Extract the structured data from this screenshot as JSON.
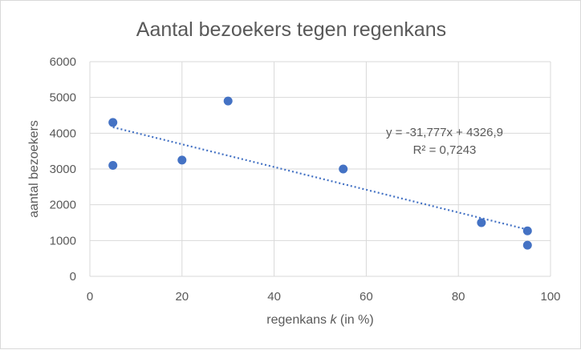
{
  "chart_data": {
    "type": "scatter",
    "title": "Aantal bezoekers tegen regenkans",
    "xlabel": {
      "before": "regenkans ",
      "italic": "k",
      "after": " (in %)"
    },
    "ylabel": "aantal bezoekers",
    "xlim": [
      0,
      100
    ],
    "ylim": [
      0,
      6000
    ],
    "x_ticks": [
      0,
      20,
      40,
      60,
      80,
      100
    ],
    "y_ticks": [
      0,
      1000,
      2000,
      3000,
      4000,
      5000,
      6000
    ],
    "grid": true,
    "legend": "none",
    "points": [
      {
        "x": 5,
        "y": 4300
      },
      {
        "x": 5,
        "y": 3100
      },
      {
        "x": 20,
        "y": 3250
      },
      {
        "x": 30,
        "y": 4900
      },
      {
        "x": 55,
        "y": 3000
      },
      {
        "x": 85,
        "y": 1500
      },
      {
        "x": 95,
        "y": 1270
      },
      {
        "x": 95,
        "y": 870
      }
    ],
    "trendline": {
      "type": "linear",
      "slope": -31.777,
      "intercept": 4326.9,
      "x_range": [
        5,
        95
      ],
      "style": "dotted",
      "equation": "y = -31,777x + 4326,9",
      "r_squared": "R² = 0,7243"
    },
    "colors": {
      "marker": "#4472c4",
      "trendline": "#4472c4",
      "grid": "#d9d9d9",
      "text": "#595959"
    }
  }
}
